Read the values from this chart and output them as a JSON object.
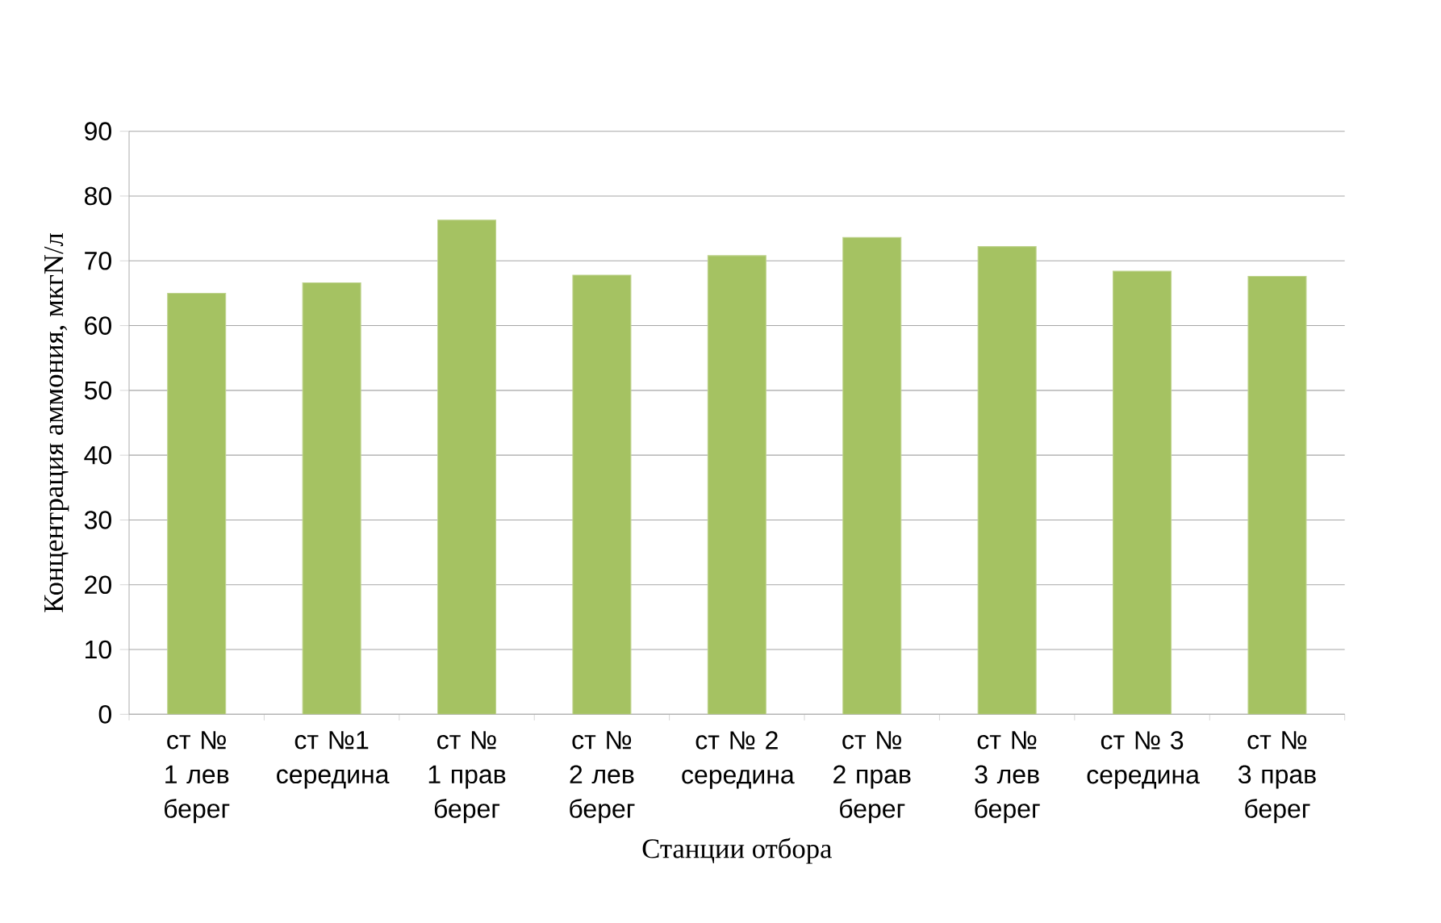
{
  "chart_data": {
    "type": "bar",
    "xlabel": "Станции отбора",
    "ylabel": "Концентрация аммония, мкгN/л",
    "categories": [
      "ст № 1 лев берег",
      "ст №1 середина",
      "ст № 1 прав берег",
      "ст № 2 лев берег",
      "ст № 2 середина",
      "ст № 2 прав берег",
      "ст № 3 лев берег",
      "ст № 3 середина",
      "ст № 3 прав берег"
    ],
    "values": [
      65.0,
      66.6,
      76.3,
      67.8,
      70.8,
      73.6,
      72.2,
      68.4,
      67.6
    ],
    "color": "#a5c262",
    "ylim": [
      0,
      90
    ],
    "yticks": [
      0,
      10,
      20,
      30,
      40,
      50,
      60,
      70,
      80,
      90
    ],
    "grid": "y"
  }
}
